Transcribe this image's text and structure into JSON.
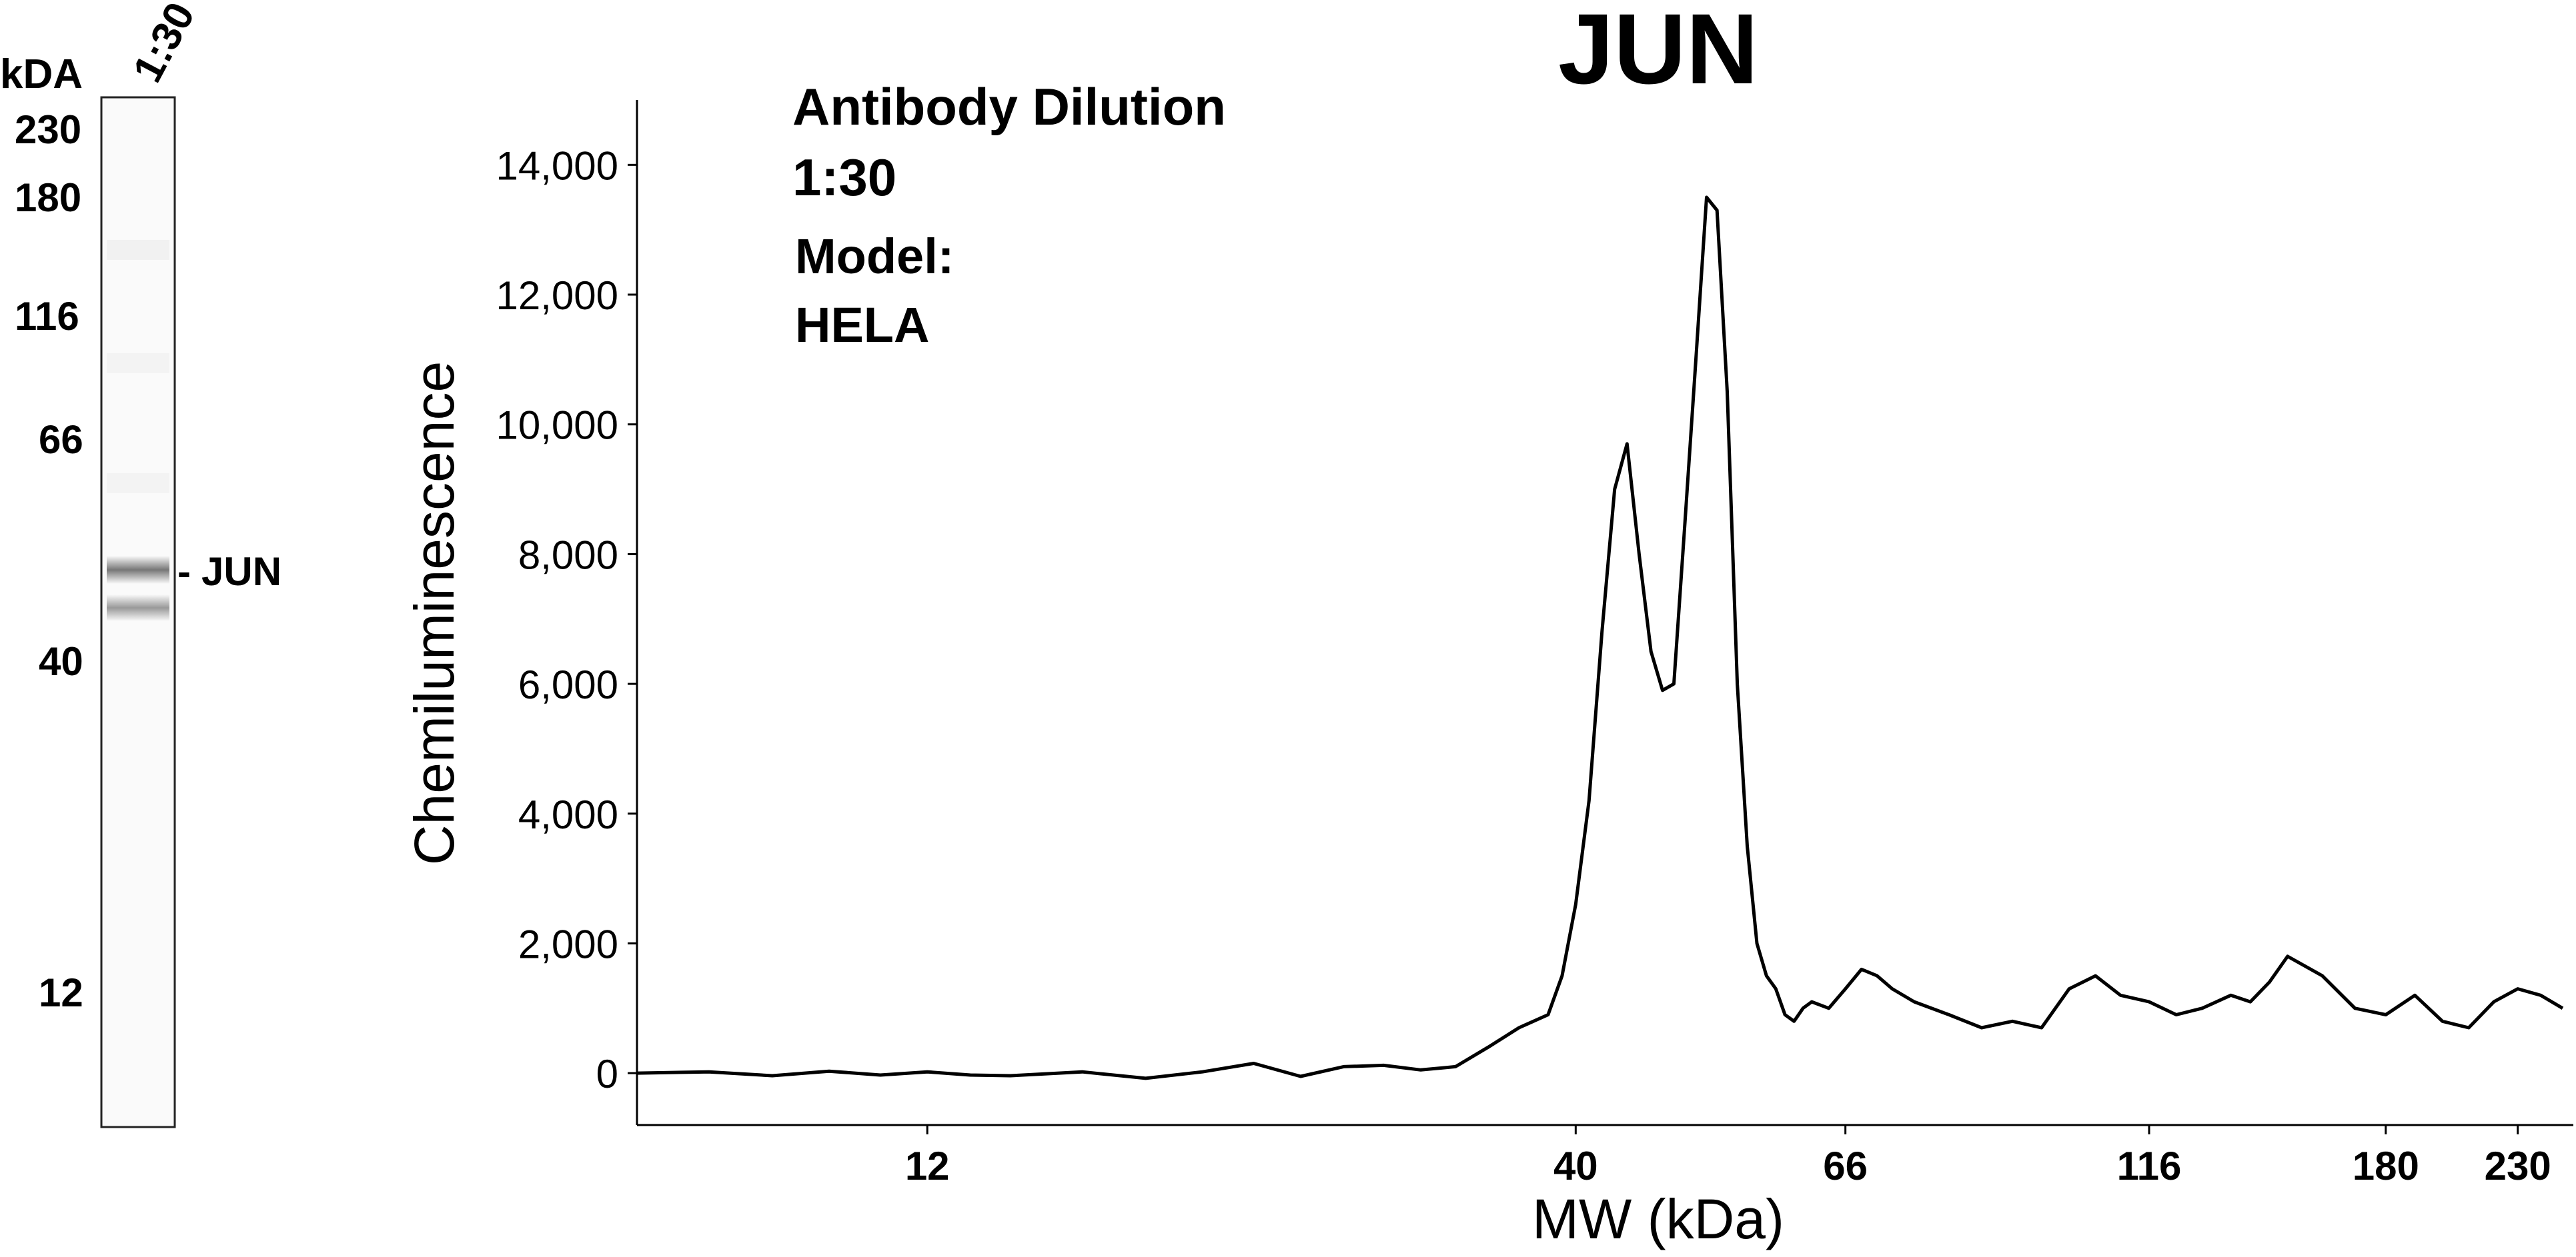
{
  "figure": {
    "title": "JUN",
    "annotation": {
      "line1": "Antibody Dilution",
      "line2": "1:30",
      "line3": "Model:",
      "line4": "HELA"
    }
  },
  "blot": {
    "lane_label": "1:30",
    "unit_label": "kDA",
    "ladder": [
      "230",
      "180",
      "116",
      "66",
      "40",
      "12"
    ],
    "band_label": "JUN",
    "band_marker": "-"
  },
  "chart_data": {
    "type": "line",
    "title": "JUN",
    "xlabel": "MW (kDa)",
    "ylabel": "Chemiluminescence",
    "x_scale": "log",
    "xlim": [
      7,
      255
    ],
    "ylim": [
      -800,
      15000
    ],
    "x_ticks": [
      12,
      40,
      66,
      116,
      180,
      230
    ],
    "x_tick_labels": [
      "12",
      "40",
      "66",
      "116",
      "180",
      "230"
    ],
    "y_ticks": [
      0,
      2000,
      4000,
      6000,
      8000,
      10000,
      12000,
      14000
    ],
    "y_tick_labels": [
      "0",
      "2,000",
      "4,000",
      "6,000",
      "8,000",
      "10,000",
      "12,000",
      "14,000"
    ],
    "grid": false,
    "legend": "none",
    "series": [
      {
        "x": [
          7,
          8,
          9,
          10,
          11,
          12,
          13,
          14,
          16,
          18,
          20,
          22,
          24,
          26,
          28,
          30,
          32,
          34,
          36,
          38,
          39,
          40,
          41,
          42,
          43,
          44,
          45,
          46,
          47,
          48,
          49,
          50,
          51,
          52,
          53,
          54,
          55,
          56,
          57,
          58,
          59,
          60,
          61,
          62,
          64,
          66,
          68,
          70,
          72,
          75,
          80,
          85,
          90,
          95,
          100,
          105,
          110,
          116,
          122,
          128,
          135,
          140,
          145,
          150,
          160,
          170,
          180,
          190,
          200,
          210,
          220,
          230,
          240,
          250
        ],
        "y": [
          0,
          20,
          -40,
          30,
          -30,
          20,
          -30,
          -40,
          20,
          -80,
          20,
          150,
          -50,
          100,
          120,
          50,
          100,
          400,
          700,
          900,
          1500,
          2600,
          4200,
          6800,
          9000,
          9700,
          8000,
          6500,
          5900,
          6000,
          8500,
          11000,
          13500,
          13300,
          10500,
          6000,
          3500,
          2000,
          1500,
          1300,
          900,
          800,
          1000,
          1100,
          1000,
          1300,
          1600,
          1500,
          1300,
          1100,
          900,
          700,
          800,
          700,
          1300,
          1500,
          1200,
          1100,
          900,
          1000,
          1200,
          1100,
          1400,
          1800,
          1500,
          1000,
          900,
          1200,
          800,
          700,
          1100,
          1300,
          1200,
          1000
        ]
      }
    ]
  }
}
